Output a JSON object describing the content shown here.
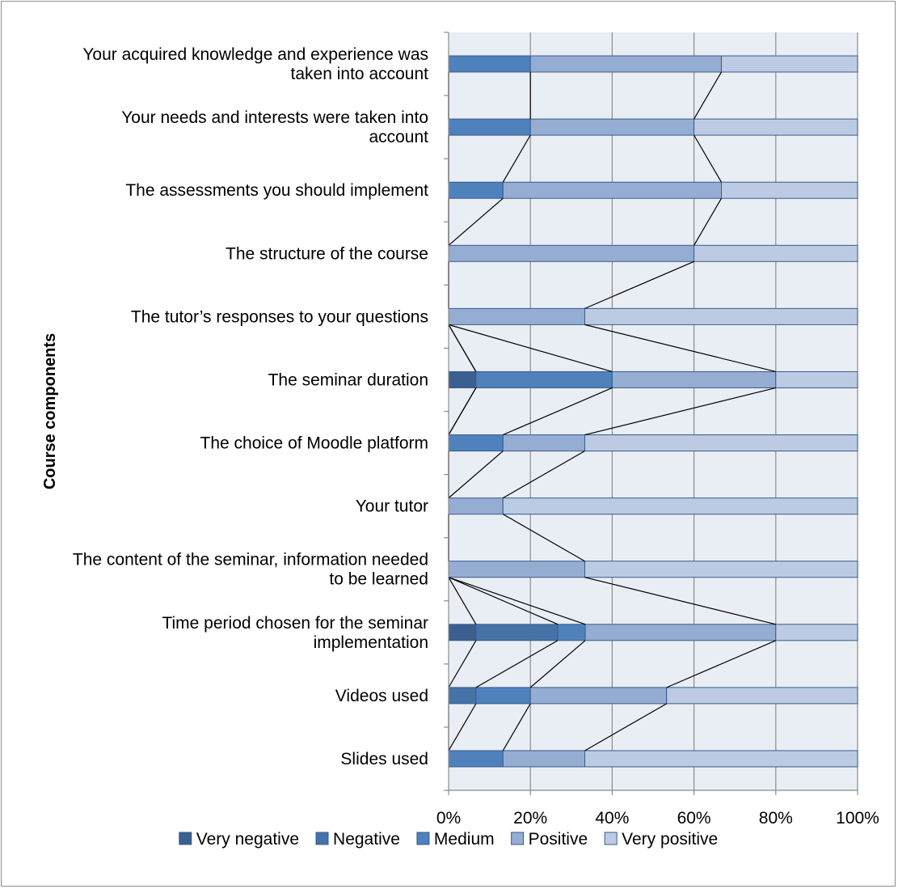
{
  "chart_data": {
    "type": "bar",
    "orientation": "horizontal",
    "stacked": "percent",
    "ylabel": "Course components",
    "xlim": [
      0,
      100
    ],
    "x_ticks": [
      "0%",
      "20%",
      "40%",
      "60%",
      "80%",
      "100%"
    ],
    "grid": true,
    "legend_position": "bottom",
    "series_lines": true,
    "categories": [
      "Slides used",
      "Videos used",
      "Time period chosen for the seminar implementation",
      "The content of the seminar, information needed to be learned",
      "Your tutor",
      "The choice of Moodle platform",
      "The seminar duration",
      "The tutor’s responses to your questions",
      "The structure of the course",
      "The assessments you should implement",
      "Your needs and interests were taken into account",
      "Your acquired knowledge and experience was taken into account"
    ],
    "series": [
      {
        "name": "Very negative",
        "color": "#3b5f8f",
        "values": [
          0,
          0,
          6.7,
          0,
          0,
          0,
          6.7,
          0,
          0,
          0,
          0,
          0
        ]
      },
      {
        "name": "Negative",
        "color": "#4573a8",
        "values": [
          0,
          6.7,
          20,
          0,
          0,
          0,
          0,
          0,
          0,
          0,
          0,
          0
        ]
      },
      {
        "name": "Medium",
        "color": "#4f81bd",
        "values": [
          13.3,
          13.3,
          6.7,
          0,
          0,
          13.3,
          33.3,
          0,
          0,
          13.3,
          20,
          20
        ]
      },
      {
        "name": "Positive",
        "color": "#95acd3",
        "values": [
          20,
          33.3,
          46.6,
          33.3,
          13.3,
          20,
          40,
          33.3,
          60,
          53.4,
          40,
          46.7
        ]
      },
      {
        "name": "Very positive",
        "color": "#bccbe3",
        "values": [
          66.7,
          46.7,
          20,
          66.7,
          86.7,
          66.7,
          20,
          66.7,
          40,
          33.3,
          40,
          33.3
        ]
      }
    ]
  }
}
